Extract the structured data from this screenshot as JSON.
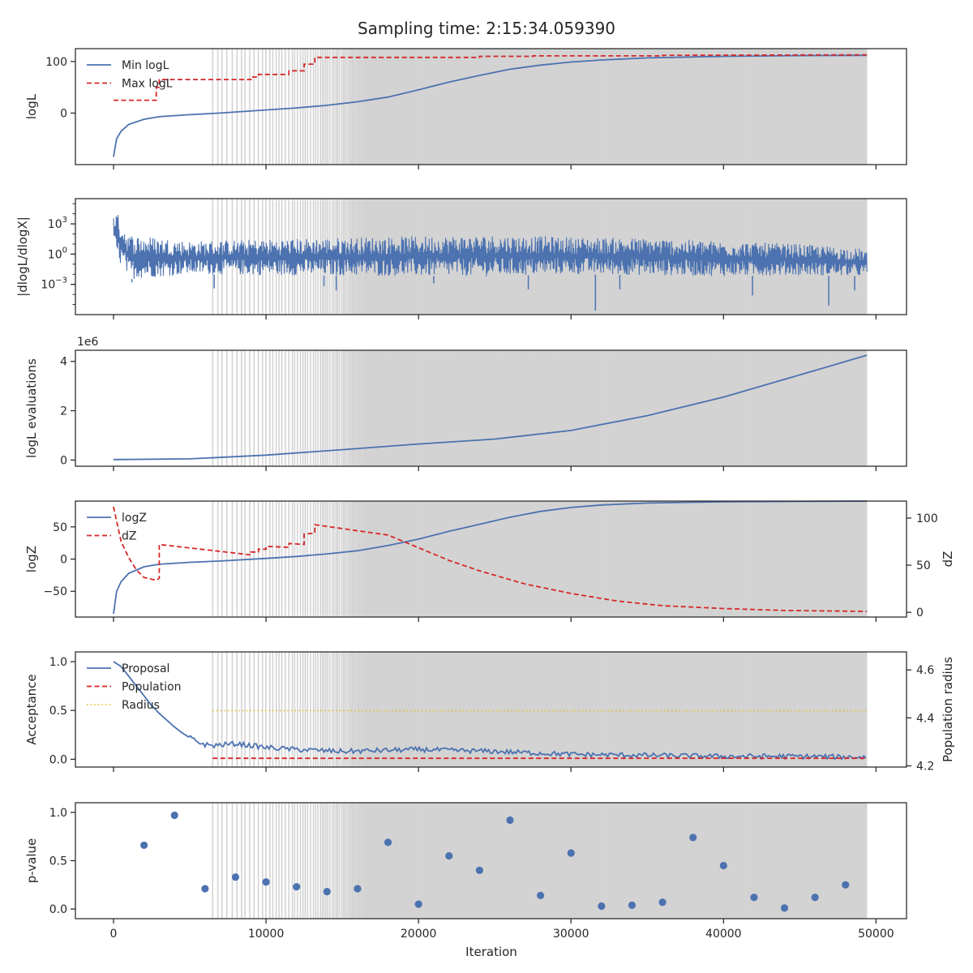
{
  "figure": {
    "title": "Sampling time: 2:15:34.059390",
    "xlabel": "Iteration",
    "x_ticks": [
      "0",
      "10000",
      "20000",
      "30000",
      "40000",
      "50000"
    ]
  },
  "colors": {
    "blue": "#4C72B0",
    "red": "#D62728",
    "gold": "#E8B923",
    "shade": "#D3D3D3",
    "shade_line": "#C8C8C8"
  },
  "chart_data": [
    {
      "type": "line",
      "ylabel": "logL",
      "xlim": [
        -2500,
        52000
      ],
      "ylim": [
        -100,
        125
      ],
      "yticks": [
        0,
        100
      ],
      "yticklabels": [
        "0",
        "100"
      ],
      "grid": false,
      "legend": {
        "placement": "top-left",
        "entries": [
          "Min logL",
          "Max logL"
        ]
      },
      "shaded_regions": "grey vertical lines from iteration ~6500 to ~49400, densifying toward the end",
      "series": [
        {
          "name": "Min logL",
          "style": "solid",
          "color": "blue",
          "x": [
            0,
            200,
            500,
            1000,
            2000,
            3000,
            5000,
            7000,
            10000,
            12000,
            14000,
            16000,
            18000,
            20000,
            22000,
            24000,
            26000,
            28000,
            30000,
            32000,
            35000,
            40000,
            45000,
            49400
          ],
          "y": [
            -85,
            -50,
            -35,
            -22,
            -12,
            -7,
            -3,
            0,
            6,
            10,
            15,
            22,
            31,
            45,
            60,
            73,
            85,
            93,
            99,
            103,
            107,
            110,
            111.5,
            112
          ]
        },
        {
          "name": "Max logL",
          "style": "dashed",
          "color": "red",
          "x": [
            0,
            2800,
            2800,
            3000,
            3000,
            9000,
            9000,
            9500,
            9500,
            10000,
            10000,
            11500,
            11500,
            12500,
            12500,
            13200,
            13200,
            24000,
            24000,
            27500,
            27500,
            36000,
            36000,
            49400
          ],
          "y": [
            25,
            25,
            50,
            50,
            65,
            65,
            70,
            70,
            75,
            75,
            75,
            75,
            82,
            82,
            95,
            95,
            108,
            108,
            110,
            110,
            111,
            111,
            112,
            113
          ]
        }
      ]
    },
    {
      "type": "line",
      "ylabel": "|dlogL/dlogX|",
      "yscale": "log",
      "xlim": [
        -2500,
        52000
      ],
      "ylim_exp": [
        -6,
        5.5
      ],
      "yticks_exp": [
        3,
        0,
        -3
      ],
      "grid": false,
      "series": [
        {
          "name": "",
          "style": "noisy band",
          "color": "blue",
          "x": [
            0,
            1000,
            5000,
            10000,
            20000,
            25000,
            30000,
            35000,
            40000,
            45000,
            49400
          ],
          "upper_exp": [
            4.8,
            2.0,
            1.3,
            1.5,
            1.8,
            1.9,
            1.7,
            1.6,
            1.3,
            1.0,
            0.5
          ],
          "lower_exp": [
            0,
            -2.5,
            -2.0,
            -2.1,
            -2.2,
            -2.2,
            -2.0,
            -2.1,
            -2.2,
            -2.1,
            -2.2
          ],
          "spikes": [
            [
              1200,
              -2.8
            ],
            [
              6600,
              -3.4
            ],
            [
              13800,
              -3.2
            ],
            [
              14600,
              -3.6
            ],
            [
              21000,
              -2.9
            ],
            [
              27200,
              -3.5
            ],
            [
              31600,
              -5.6
            ],
            [
              33200,
              -3.5
            ],
            [
              41900,
              -4.1
            ],
            [
              46900,
              -5.1
            ],
            [
              48600,
              -3.6
            ]
          ]
        }
      ]
    },
    {
      "type": "line",
      "ylabel": "logL evaluations",
      "offset_label": "1e6",
      "xlim": [
        -2500,
        52000
      ],
      "ylim": [
        -0.25,
        4.45
      ],
      "yticks": [
        0,
        2,
        4
      ],
      "yticklabels": [
        "0",
        "2",
        "4"
      ],
      "grid": false,
      "series": [
        {
          "name": "",
          "style": "solid",
          "color": "blue",
          "x": [
            0,
            5000,
            10000,
            15000,
            20000,
            25000,
            30000,
            35000,
            40000,
            45000,
            49400
          ],
          "y": [
            0.02,
            0.05,
            0.2,
            0.42,
            0.65,
            0.85,
            1.2,
            1.8,
            2.55,
            3.45,
            4.25
          ]
        }
      ]
    },
    {
      "type": "line",
      "ylabel": "logZ",
      "ylabel_right": "dZ",
      "xlim": [
        -2500,
        52000
      ],
      "ylim": [
        -90,
        90
      ],
      "ylim_right": [
        -5,
        118
      ],
      "yticks": [
        50,
        0,
        -50
      ],
      "yticklabels": [
        "50",
        "0",
        "−50"
      ],
      "yticks_right": [
        100,
        50,
        0
      ],
      "yticklabels_right": [
        "100",
        "50",
        "0"
      ],
      "grid": false,
      "legend": {
        "placement": "top-left",
        "entries": [
          "logZ",
          "dZ"
        ]
      },
      "series": [
        {
          "name": "logZ",
          "style": "solid",
          "color": "blue",
          "axis": "left",
          "x": [
            0,
            200,
            500,
            1000,
            2000,
            3000,
            5000,
            7000,
            10000,
            12000,
            14000,
            16000,
            18000,
            20000,
            22000,
            24000,
            26000,
            28000,
            30000,
            32000,
            35000,
            40000,
            45000,
            49400
          ],
          "y": [
            -85,
            -50,
            -35,
            -22,
            -12,
            -8,
            -5,
            -3,
            1,
            4,
            8,
            13,
            21,
            31,
            43,
            54,
            65,
            74,
            80,
            84,
            87,
            89,
            89.5,
            90
          ]
        },
        {
          "name": "dZ",
          "style": "dashed",
          "color": "red",
          "axis": "right",
          "x": [
            0,
            500,
            1000,
            1500,
            2000,
            2800,
            2800,
            3000,
            3000,
            9000,
            9000,
            9500,
            9500,
            10000,
            10000,
            11500,
            11500,
            12500,
            12500,
            13200,
            13200,
            18000,
            22000,
            24000,
            27000,
            30000,
            33000,
            36000,
            40000,
            44000,
            49400
          ],
          "y": [
            112,
            75,
            58,
            45,
            37,
            34,
            34,
            36,
            72,
            61,
            64,
            64,
            67,
            67,
            70,
            69,
            73,
            72,
            83,
            84,
            93,
            82,
            55,
            44,
            30,
            20,
            12,
            7,
            4,
            2,
            1
          ]
        }
      ]
    },
    {
      "type": "line",
      "ylabel": "Acceptance",
      "ylabel_right": "Population radius",
      "xlim": [
        -2500,
        52000
      ],
      "ylim": [
        -0.08,
        1.1
      ],
      "ylim_right": [
        4.195,
        4.675
      ],
      "yticks": [
        1.0,
        0.5,
        0.0
      ],
      "yticklabels": [
        "1.0",
        "0.5",
        "0.0"
      ],
      "yticks_right": [
        4.6,
        4.4,
        4.2
      ],
      "yticklabels_right": [
        "4.6",
        "4.4",
        "4.2"
      ],
      "grid": false,
      "legend": {
        "placement": "top-left",
        "entries": [
          "Proposal",
          "Population",
          "Radius"
        ]
      },
      "series": [
        {
          "name": "Proposal",
          "style": "solid",
          "color": "blue",
          "axis": "left",
          "x": [
            0,
            500,
            1000,
            1500,
            2000,
            2500,
            3000,
            3500,
            4000,
            4500,
            5000,
            5500,
            6000,
            6500,
            8000,
            10000,
            12000,
            15000,
            20000,
            25000,
            30000,
            35000,
            40000,
            45000,
            49400
          ],
          "y": [
            1.0,
            0.95,
            0.85,
            0.75,
            0.65,
            0.55,
            0.47,
            0.4,
            0.33,
            0.27,
            0.22,
            0.18,
            0.15,
            0.14,
            0.16,
            0.12,
            0.1,
            0.08,
            0.1,
            0.08,
            0.05,
            0.04,
            0.03,
            0.03,
            0.02
          ]
        },
        {
          "name": "Population",
          "style": "dashed",
          "color": "red",
          "axis": "left",
          "x": [
            6500,
            49400
          ],
          "y": [
            0.01,
            0.01
          ]
        },
        {
          "name": "Radius",
          "style": "dotted",
          "color": "gold",
          "axis": "right",
          "x": [
            6500,
            49400
          ],
          "y": [
            4.43,
            4.43
          ]
        }
      ]
    },
    {
      "type": "scatter",
      "ylabel": "p-value",
      "xlim": [
        -2500,
        52000
      ],
      "ylim": [
        -0.1,
        1.1
      ],
      "yticks": [
        1.0,
        0.5,
        0.0
      ],
      "yticklabels": [
        "1.0",
        "0.5",
        "0.0"
      ],
      "grid": false,
      "series": [
        {
          "name": "",
          "color": "blue",
          "x": [
            2000,
            4000,
            6000,
            8000,
            10000,
            12000,
            14000,
            16000,
            18000,
            20000,
            22000,
            24000,
            26000,
            28000,
            30000,
            32000,
            34000,
            36000,
            38000,
            40000,
            42000,
            44000,
            46000,
            48000
          ],
          "y": [
            0.66,
            0.97,
            0.21,
            0.33,
            0.28,
            0.23,
            0.18,
            0.21,
            0.69,
            0.05,
            0.55,
            0.4,
            0.92,
            0.14,
            0.58,
            0.03,
            0.04,
            0.07,
            0.74,
            0.45,
            0.12,
            0.01,
            0.12,
            0.25
          ]
        }
      ]
    }
  ]
}
